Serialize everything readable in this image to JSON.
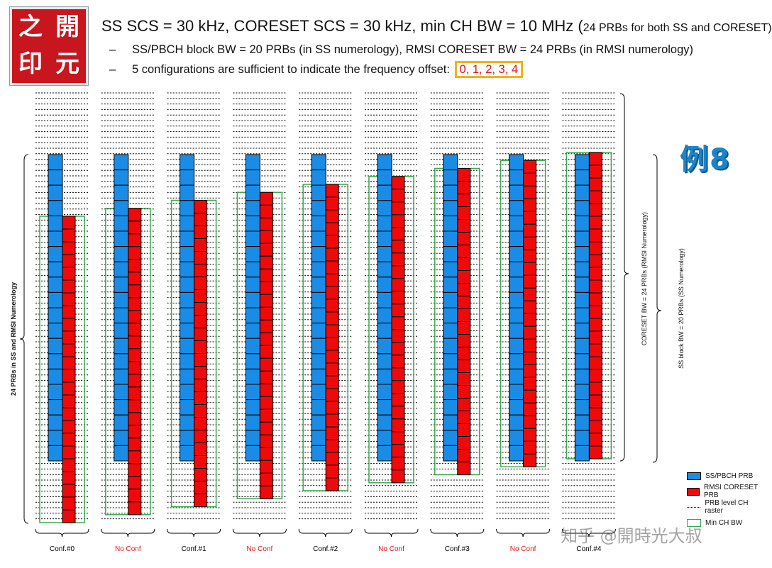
{
  "logo": {
    "chars": [
      "之",
      "開",
      "印",
      "元"
    ]
  },
  "header": {
    "title_main": "SS SCS = 30 kHz, CORESET SCS = 30 kHz, min CH BW = 10 MHz (",
    "title_small": "24 PRBs for both SS and CORESET)",
    "bullet1": "SS/PBCH block BW = 20 PRBs (in SS numerology), RMSI CORESET BW = 24 PRBs (in RMSI numerology)",
    "bullet2": "5 configurations are sufficient to indicate the frequency offset:",
    "offsets": "0, 1, 2, 3, 4",
    "dash": "–"
  },
  "watermark": "例8",
  "zh_watermark": "知乎 @開時光大叔",
  "labels": {
    "left_axis": "24 PRBs in SS and RMSI Numerology",
    "coreset_bw": "CORESET BW = 24 PRBs (RMSI Numerology)",
    "ss_block_bw": "SS block BW = 20 PRBs (SS Numerology)"
  },
  "legend": [
    {
      "swatch": "blue",
      "label": "SS/PBCH PRB"
    },
    {
      "swatch": "red",
      "label": "RMSI CORESET PRB"
    },
    {
      "swatch": "dash",
      "label": "PRB level CH raster"
    },
    {
      "swatch": "green",
      "label": "Min CH BW"
    }
  ],
  "colors": {
    "ss": "#1a8ce6",
    "coreset": "#ee0a0a",
    "minbw": "#3aa84f",
    "offset_text": "#e0141c",
    "offset_box": "#f3b21c"
  },
  "chart_data": {
    "type": "diagram",
    "ss_prbs": 20,
    "coreset_prbs": 24,
    "min_ch_bw_prbs": 24,
    "columns": [
      {
        "label": "Conf.#0",
        "valid": true,
        "coreset_shift_prbs": 0
      },
      {
        "label": "No Conf",
        "valid": false,
        "coreset_shift_prbs": 0.5
      },
      {
        "label": "Conf.#1",
        "valid": true,
        "coreset_shift_prbs": 1
      },
      {
        "label": "No Conf",
        "valid": false,
        "coreset_shift_prbs": 1.5
      },
      {
        "label": "Conf.#2",
        "valid": true,
        "coreset_shift_prbs": 2
      },
      {
        "label": "No Conf",
        "valid": false,
        "coreset_shift_prbs": 2.5
      },
      {
        "label": "Conf.#3",
        "valid": true,
        "coreset_shift_prbs": 3
      },
      {
        "label": "No Conf",
        "valid": false,
        "coreset_shift_prbs": 3.5
      },
      {
        "label": "Conf.#4",
        "valid": true,
        "coreset_shift_prbs": 4
      }
    ]
  }
}
